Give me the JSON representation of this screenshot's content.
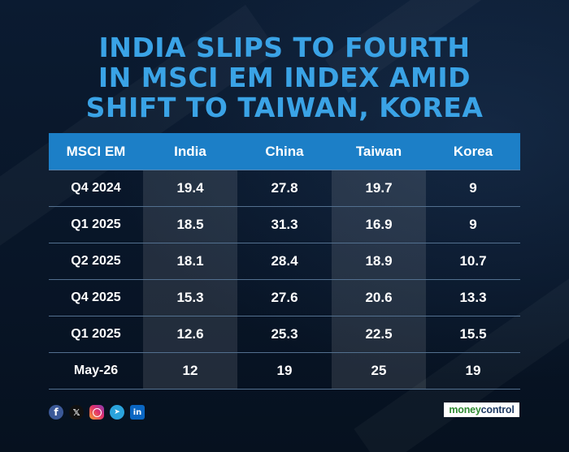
{
  "headline": {
    "line1": "INDIA SLIPS TO FOURTH",
    "line2": "IN MSCI EM INDEX AMID",
    "line3": "SHIFT TO TAIWAN, KOREA"
  },
  "table": {
    "headers": [
      "MSCI EM",
      "India",
      "China",
      "Taiwan",
      "Korea"
    ],
    "rows": [
      {
        "period": "Q4 2024",
        "values": [
          "19.4",
          "27.8",
          "19.7",
          "9"
        ]
      },
      {
        "period": "Q1 2025",
        "values": [
          "18.5",
          "31.3",
          "16.9",
          "9"
        ]
      },
      {
        "period": "Q2 2025",
        "values": [
          "18.1",
          "28.4",
          "18.9",
          "10.7"
        ]
      },
      {
        "period": "Q4 2025",
        "values": [
          "15.3",
          "27.6",
          "20.6",
          "13.3"
        ]
      },
      {
        "period": "Q1 2025",
        "values": [
          "12.6",
          "25.3",
          "22.5",
          "15.5"
        ]
      },
      {
        "period": "May-26",
        "values": [
          "12",
          "19",
          "25",
          "19"
        ]
      }
    ]
  },
  "social": {
    "icons": [
      "facebook-icon",
      "x-icon",
      "instagram-icon",
      "telegram-icon",
      "linkedin-icon"
    ],
    "glyphs": {
      "facebook": "f",
      "x": "𝕏",
      "telegram": "➤",
      "linkedin": "in"
    }
  },
  "brand": {
    "part1": "money",
    "part2": "control"
  },
  "colors": {
    "background": "#081527",
    "title": "#3aa3e6",
    "header_bar": "#1c7fc7",
    "brand_green": "#2f8a32",
    "brand_navy": "#1f3b64"
  }
}
